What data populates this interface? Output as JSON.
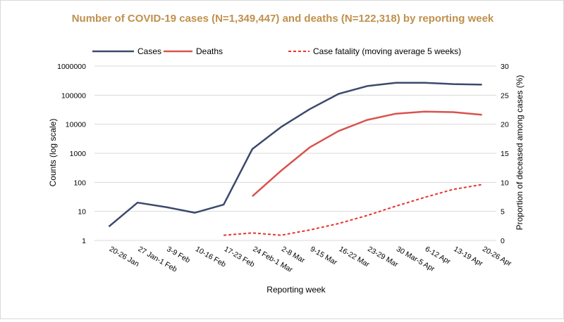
{
  "chart_data": {
    "type": "line",
    "title": "Number of COVID-19 cases (N=1,349,447) and deaths (N=122,318) by reporting week",
    "categories": [
      "20-26 Jan",
      "27 Jan-1 Feb",
      "3-9 Feb",
      "10-16 Feb",
      "17-23 Feb",
      "24 Feb-1 Mar",
      "2-8 Mar",
      "9-15 Mar",
      "16-22 Mar",
      "23-29 Mar",
      "30 Mar-5 Apr",
      "6-12 Apr",
      "13-19 Apr",
      "20-26 Apr"
    ],
    "xlabel": "Reporting week",
    "ylabel": "Counts (log scale)",
    "y2label": "Proportion  of deceased among cases (%)",
    "yscale": "log",
    "ylim": [
      1,
      1000000
    ],
    "y_ticks": [
      "1",
      "10",
      "100",
      "1000",
      "10000",
      "100000",
      "1000000"
    ],
    "y_tick_values": [
      1,
      10,
      100,
      1000,
      10000,
      100000,
      1000000
    ],
    "y2lim": [
      0,
      30
    ],
    "y2_ticks": [
      "0",
      "5",
      "10",
      "15",
      "20",
      "25",
      "30"
    ],
    "y2_tick_values": [
      0,
      5,
      10,
      15,
      20,
      25,
      30
    ],
    "legend_position": "top",
    "series": [
      {
        "name": "Cases",
        "axis": "left",
        "color": "#3b4a6b",
        "style": "solid",
        "values": [
          3,
          20,
          14,
          9,
          17,
          1400,
          8000,
          33000,
          110000,
          205000,
          265000,
          265000,
          240000,
          230000
        ]
      },
      {
        "name": "Deaths",
        "axis": "left",
        "color": "#d9534f",
        "style": "solid",
        "values": [
          null,
          null,
          null,
          null,
          null,
          33,
          250,
          1600,
          5800,
          14000,
          23000,
          27000,
          26000,
          21000
        ]
      },
      {
        "name": "Case fatality (moving average 5 weeks)",
        "axis": "right",
        "color": "#e8322d",
        "style": "dashed",
        "values": [
          null,
          null,
          null,
          null,
          0.9,
          1.3,
          0.9,
          1.8,
          2.9,
          4.3,
          5.9,
          7.4,
          8.8,
          9.6
        ]
      }
    ]
  }
}
